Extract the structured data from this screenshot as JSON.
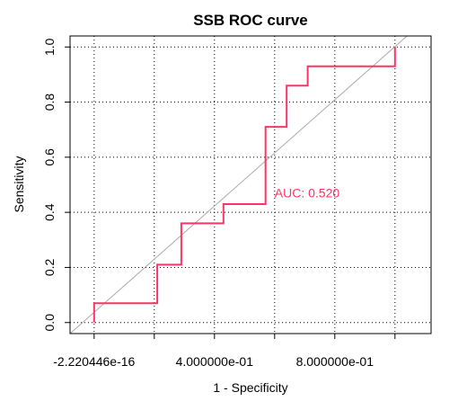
{
  "chart_data": {
    "type": "line",
    "title": "SSB ROC curve",
    "xlabel": "1 - Specificity",
    "ylabel": "Sensitivity",
    "xlim": [
      -0.08,
      1.12
    ],
    "ylim": [
      -0.04,
      1.04
    ],
    "x_ticks": [
      {
        "value": 0.0,
        "label": "-2.220446e-16"
      },
      {
        "value": 0.2,
        "label": ""
      },
      {
        "value": 0.4,
        "label": "4.000000e-01"
      },
      {
        "value": 0.6,
        "label": ""
      },
      {
        "value": 0.8,
        "label": "8.000000e-01"
      },
      {
        "value": 1.0,
        "label": ""
      }
    ],
    "y_ticks": [
      {
        "value": 0.0,
        "label": "0.0"
      },
      {
        "value": 0.2,
        "label": "0.2"
      },
      {
        "value": 0.4,
        "label": "0.4"
      },
      {
        "value": 0.6,
        "label": "0.6"
      },
      {
        "value": 0.8,
        "label": "0.8"
      },
      {
        "value": 1.0,
        "label": "1.0"
      }
    ],
    "grid": true,
    "series": [
      {
        "color": "#ff3366",
        "x": [
          0.0,
          0.0,
          0.21,
          0.21,
          0.29,
          0.29,
          0.43,
          0.43,
          0.57,
          0.57,
          0.64,
          0.64,
          0.71,
          0.71,
          1.0,
          1.0
        ],
        "y": [
          0.0,
          0.07,
          0.07,
          0.21,
          0.21,
          0.36,
          0.36,
          0.43,
          0.43,
          0.71,
          0.71,
          0.86,
          0.86,
          0.93,
          0.93,
          1.0
        ]
      }
    ],
    "reference_line": {
      "color": "#aaaaaa",
      "x": [
        -0.08,
        1.04
      ],
      "y": [
        -0.04,
        1.04
      ]
    },
    "annotation": {
      "text": "AUC: 0.520",
      "x": 0.6,
      "y": 0.47,
      "color": "#ff3366"
    }
  }
}
